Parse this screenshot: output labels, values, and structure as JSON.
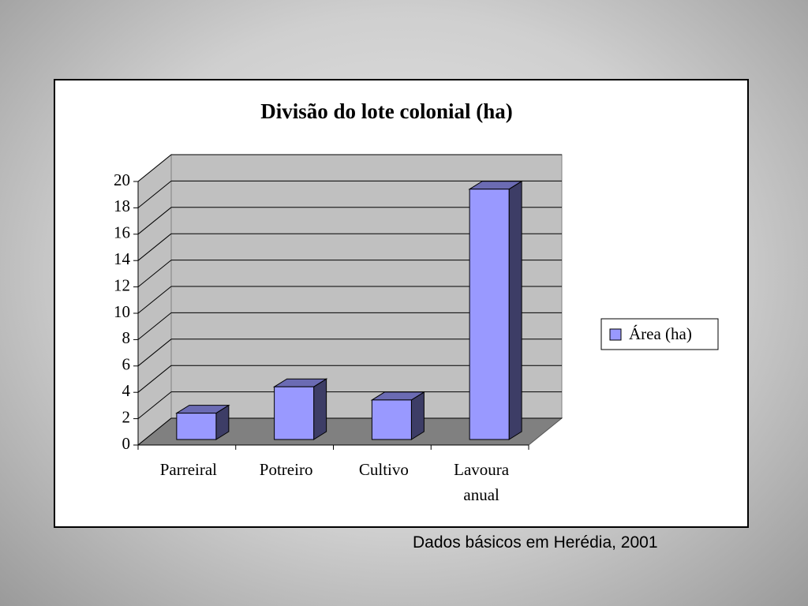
{
  "chart_data": {
    "type": "bar",
    "title": "Divisão do lote colonial (ha)",
    "categories": [
      "Parreiral",
      "Potreiro",
      "Cultivo",
      "Lavoura anual"
    ],
    "series": [
      {
        "name": "Área (ha)",
        "color": "#9999ff",
        "values": [
          2,
          4,
          3,
          19
        ]
      }
    ],
    "ylim": [
      0,
      20
    ],
    "yticks": [
      0,
      2,
      4,
      6,
      8,
      10,
      12,
      14,
      16,
      18,
      20
    ],
    "grid": true,
    "source": "Dados básicos em Herédia, 2001"
  }
}
